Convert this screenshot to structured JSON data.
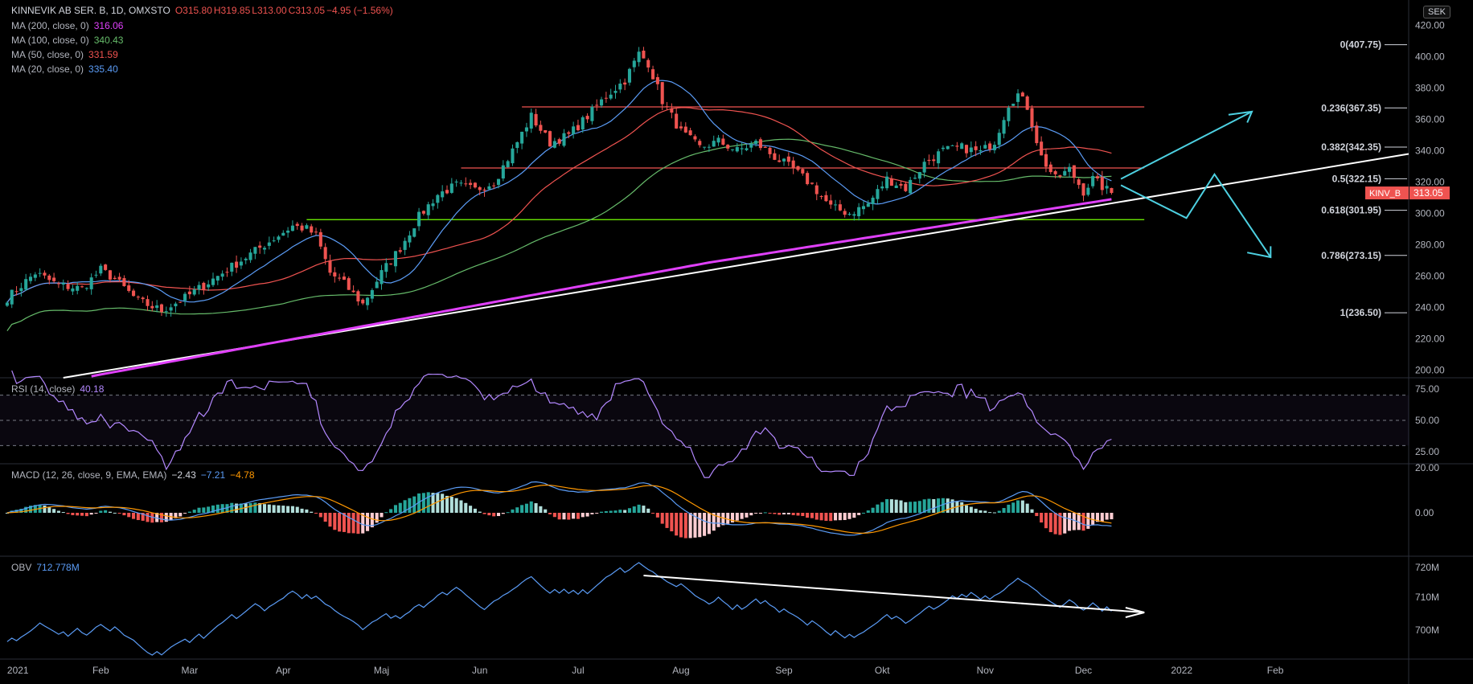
{
  "header": {
    "symbol": "KINNEVIK AB SER. B, 1D, OMXSTO",
    "open": "O315.80",
    "high": "H319.85",
    "low": "L313.00",
    "close": "C313.05",
    "change": "−4.95 (−1.56%)",
    "currency": "SEK"
  },
  "legend": {
    "ma200": {
      "label": "MA (200, close, 0)",
      "value": "316.06",
      "color": "#e040fb"
    },
    "ma100": {
      "label": "MA (100, close, 0)",
      "value": "340.43",
      "color": "#66bb6a"
    },
    "ma50": {
      "label": "MA (50, close, 0)",
      "value": "331.59",
      "color": "#ef5350"
    },
    "ma20": {
      "label": "MA (20, close, 0)",
      "value": "335.40",
      "color": "#5b9cf6"
    },
    "rsi": {
      "label": "RSI (14, close)",
      "value": "40.18"
    },
    "macd": {
      "label": "MACD (12, 26, close, 9, EMA, EMA)",
      "v1": "−2.43",
      "v2": "−7.21",
      "v3": "−4.78"
    },
    "obv": {
      "label": "OBV",
      "value": "712.778M"
    }
  },
  "chart_data": [
    {
      "type": "candlestick",
      "symbol": "KINNEVIK AB SER. B",
      "interval": "1D",
      "x_labels": [
        "2021",
        "Feb",
        "Mar",
        "Apr",
        "Maj",
        "Jun",
        "Jul",
        "Aug",
        "Sep",
        "Okt",
        "Nov",
        "Dec",
        "2022",
        "Feb"
      ],
      "y_ticks": [
        200,
        220,
        240,
        260,
        280,
        300,
        320,
        340,
        360,
        380,
        400,
        420
      ],
      "ylim": [
        195,
        425
      ],
      "price_path": [
        [
          0,
          246
        ],
        [
          6,
          262
        ],
        [
          11,
          254
        ],
        [
          16,
          252
        ],
        [
          20,
          264
        ],
        [
          23,
          258
        ],
        [
          28,
          244
        ],
        [
          33,
          238
        ],
        [
          38,
          246
        ],
        [
          43,
          256
        ],
        [
          48,
          266
        ],
        [
          55,
          280
        ],
        [
          61,
          292
        ],
        [
          64,
          290
        ],
        [
          66,
          286
        ],
        [
          69,
          262
        ],
        [
          72,
          255
        ],
        [
          76,
          242
        ],
        [
          80,
          262
        ],
        [
          84,
          278
        ],
        [
          88,
          298
        ],
        [
          92,
          312
        ],
        [
          96,
          318
        ],
        [
          100,
          315
        ],
        [
          104,
          320
        ],
        [
          108,
          340
        ],
        [
          112,
          362
        ],
        [
          116,
          345
        ],
        [
          120,
          350
        ],
        [
          124,
          362
        ],
        [
          128,
          375
        ],
        [
          132,
          385
        ],
        [
          135,
          402
        ],
        [
          137,
          396
        ],
        [
          140,
          372
        ],
        [
          144,
          352
        ],
        [
          148,
          342
        ],
        [
          152,
          346
        ],
        [
          156,
          340
        ],
        [
          160,
          345
        ],
        [
          164,
          336
        ],
        [
          168,
          328
        ],
        [
          172,
          318
        ],
        [
          176,
          304
        ],
        [
          180,
          300
        ],
        [
          184,
          306
        ],
        [
          188,
          322
        ],
        [
          192,
          316
        ],
        [
          196,
          332
        ],
        [
          200,
          340
        ],
        [
          204,
          342
        ],
        [
          208,
          339
        ],
        [
          211,
          346
        ],
        [
          214,
          370
        ],
        [
          216,
          376
        ],
        [
          218,
          368
        ],
        [
          221,
          336
        ],
        [
          224,
          322
        ],
        [
          227,
          328
        ],
        [
          230,
          314
        ],
        [
          232,
          322
        ],
        [
          234,
          317
        ],
        [
          236,
          313
        ]
      ],
      "last_price": "313.05",
      "price_badge": "KINV_B",
      "fibonacci": [
        {
          "label": "0(407.75)",
          "value": 407.75
        },
        {
          "label": "0.236(367.35)",
          "value": 367.35
        },
        {
          "label": "0.382(342.35)",
          "value": 342.35
        },
        {
          "label": "0.5(322.15)",
          "value": 322.15
        },
        {
          "label": "0.618(301.95)",
          "value": 301.95
        },
        {
          "label": "0.786(273.15)",
          "value": 273.15
        },
        {
          "label": "1(236.50)",
          "value": 236.5
        }
      ],
      "horizontal_levels": [
        {
          "value": 368,
          "color": "#ef5350"
        },
        {
          "value": 329,
          "color": "#ef5350"
        },
        {
          "value": 296,
          "color": "#76ff03"
        }
      ]
    },
    {
      "type": "line",
      "name": "RSI (14, close)",
      "y_ticks": [
        25,
        50,
        75
      ],
      "levels": [
        30,
        50,
        70
      ],
      "last": 40.18
    },
    {
      "type": "histogram",
      "name": "MACD (12, 26, close, 9, EMA, EMA)",
      "y_ticks": [
        "20.00",
        "0.00"
      ],
      "last": [
        -2.43,
        -7.21,
        -4.78
      ]
    },
    {
      "type": "line",
      "name": "OBV",
      "y_ticks": [
        "720M",
        "710M",
        "700M"
      ],
      "last": "712.778M"
    }
  ]
}
